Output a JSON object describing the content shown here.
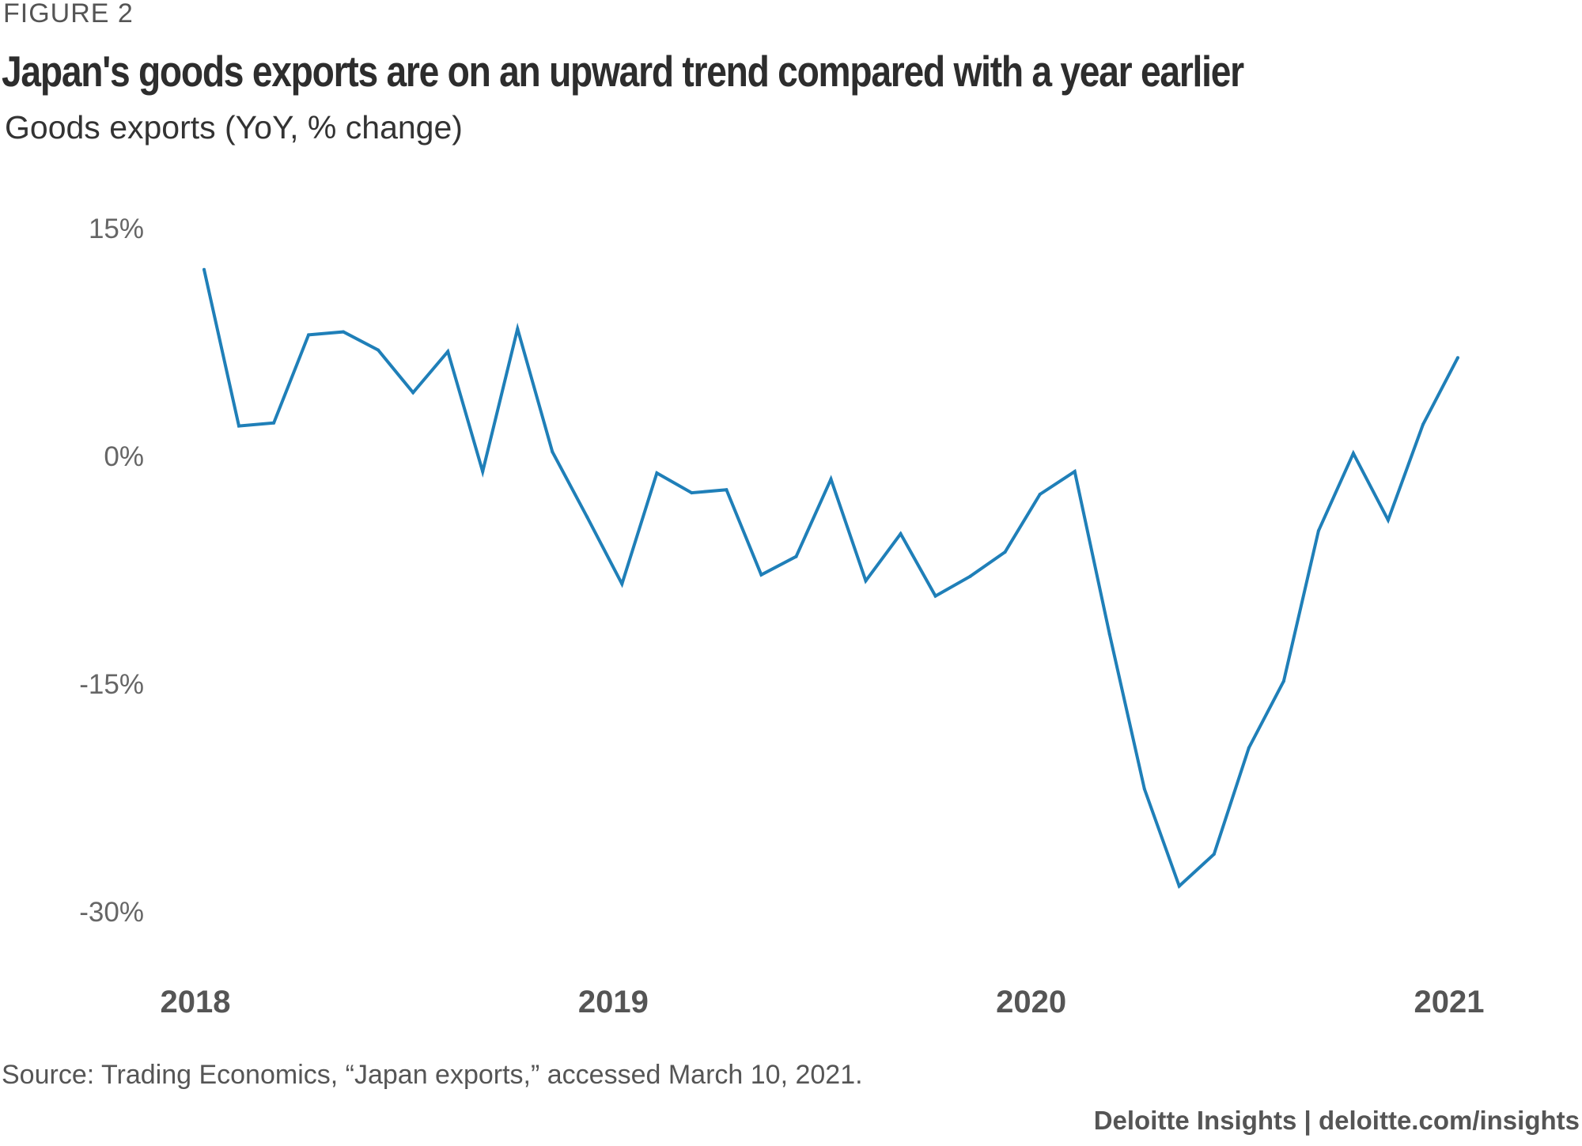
{
  "figure_label": "FIGURE 2",
  "chart_data": {
    "type": "line",
    "title": "Japan's goods exports are on an upward trend compared with a year earlier",
    "subtitle": "Goods exports (YoY, % change)",
    "ylabel": "",
    "xlabel": "",
    "ylim": [
      -30,
      15
    ],
    "y_ticks": [
      {
        "value": 15,
        "label": "15%"
      },
      {
        "value": 0,
        "label": "0%"
      },
      {
        "value": -15,
        "label": "-15%"
      },
      {
        "value": -30,
        "label": "-30%"
      }
    ],
    "x_ticks": [
      {
        "value": "2018-01",
        "label": "2018"
      },
      {
        "value": "2019-01",
        "label": "2019"
      },
      {
        "value": "2020-01",
        "label": "2020"
      },
      {
        "value": "2021-01",
        "label": "2021"
      }
    ],
    "grid": false,
    "line_color": "#1f7fb8",
    "series": [
      {
        "name": "",
        "x": [
          "2018-01",
          "2018-02",
          "2018-03",
          "2018-04",
          "2018-05",
          "2018-06",
          "2018-07",
          "2018-08",
          "2018-09",
          "2018-10",
          "2018-11",
          "2018-12",
          "2019-01",
          "2019-02",
          "2019-03",
          "2019-04",
          "2019-05",
          "2019-06",
          "2019-07",
          "2019-08",
          "2019-09",
          "2019-10",
          "2019-11",
          "2019-12",
          "2020-01",
          "2020-02",
          "2020-03",
          "2020-04",
          "2020-05",
          "2020-06",
          "2020-07",
          "2020-08",
          "2020-09",
          "2020-10",
          "2020-11",
          "2020-12",
          "2021-01"
        ],
        "values": [
          12.3,
          2.0,
          2.2,
          8.0,
          8.2,
          7.0,
          4.2,
          6.9,
          -1.0,
          8.4,
          0.3,
          -4.0,
          -8.4,
          -1.1,
          -2.4,
          -2.2,
          -7.8,
          -6.6,
          -1.5,
          -8.2,
          -5.1,
          -9.2,
          -7.9,
          -6.3,
          -2.5,
          -1.0,
          -11.7,
          -21.9,
          -28.3,
          -26.2,
          -19.2,
          -14.8,
          -4.9,
          0.2,
          -4.2,
          2.1,
          6.5
        ]
      }
    ]
  },
  "source_text": "Source: Trading Economics, “Japan exports,” accessed March 10, 2021.",
  "branding_text": "Deloitte Insights | deloitte.com/insights"
}
